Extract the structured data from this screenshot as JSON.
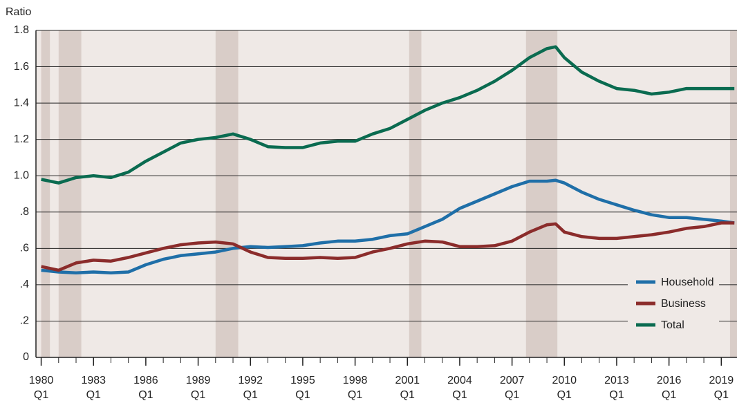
{
  "chart_data": {
    "type": "line",
    "y_axis_label": "Ratio",
    "x": [
      1980,
      1981,
      1982,
      1983,
      1984,
      1985,
      1986,
      1987,
      1988,
      1989,
      1990,
      1991,
      1992,
      1993,
      1994,
      1995,
      1996,
      1997,
      1998,
      1999,
      2000,
      2001,
      2002,
      2003,
      2004,
      2005,
      2006,
      2007,
      2008,
      2009,
      2009.5,
      2010,
      2011,
      2012,
      2013,
      2014,
      2015,
      2016,
      2017,
      2018,
      2019,
      2019.75
    ],
    "series": [
      {
        "name": "Household",
        "color": "#1f6fa8",
        "values": [
          0.48,
          0.47,
          0.465,
          0.47,
          0.465,
          0.47,
          0.51,
          0.54,
          0.56,
          0.57,
          0.58,
          0.6,
          0.61,
          0.605,
          0.61,
          0.615,
          0.63,
          0.64,
          0.64,
          0.65,
          0.67,
          0.68,
          0.72,
          0.76,
          0.82,
          0.86,
          0.9,
          0.94,
          0.97,
          0.97,
          0.975,
          0.96,
          0.91,
          0.87,
          0.84,
          0.81,
          0.785,
          0.77,
          0.77,
          0.76,
          0.75,
          0.74
        ]
      },
      {
        "name": "Business",
        "color": "#8b2c2b",
        "values": [
          0.5,
          0.48,
          0.52,
          0.535,
          0.53,
          0.55,
          0.575,
          0.6,
          0.62,
          0.63,
          0.635,
          0.625,
          0.58,
          0.55,
          0.545,
          0.545,
          0.55,
          0.545,
          0.55,
          0.58,
          0.6,
          0.625,
          0.64,
          0.635,
          0.61,
          0.61,
          0.615,
          0.64,
          0.69,
          0.73,
          0.735,
          0.69,
          0.665,
          0.655,
          0.655,
          0.665,
          0.675,
          0.69,
          0.71,
          0.72,
          0.74,
          0.74
        ]
      },
      {
        "name": "Total",
        "color": "#0a6b50",
        "values": [
          0.98,
          0.96,
          0.99,
          1.0,
          0.99,
          1.02,
          1.08,
          1.13,
          1.18,
          1.2,
          1.21,
          1.23,
          1.2,
          1.16,
          1.155,
          1.155,
          1.18,
          1.19,
          1.19,
          1.23,
          1.26,
          1.31,
          1.36,
          1.4,
          1.43,
          1.47,
          1.52,
          1.58,
          1.65,
          1.7,
          1.71,
          1.65,
          1.57,
          1.52,
          1.48,
          1.47,
          1.45,
          1.46,
          1.48,
          1.48,
          1.48,
          1.48
        ]
      }
    ],
    "shaded_periods": [
      [
        1980.0,
        1980.5
      ],
      [
        1981.0,
        1982.3
      ],
      [
        1990.0,
        1991.3
      ],
      [
        2001.1,
        2001.8
      ],
      [
        2007.8,
        2009.6
      ],
      [
        2019.5,
        2019.9
      ]
    ],
    "shade_color": "#d9cdc8",
    "background": "#efe9e6",
    "xlim": [
      1979.7,
      2019.9
    ],
    "xticks": [
      {
        "value": 1980,
        "label": "1980",
        "quarter": "Q1"
      },
      {
        "value": 1983,
        "label": "1983",
        "quarter": "Q1"
      },
      {
        "value": 1986,
        "label": "1986",
        "quarter": "Q1"
      },
      {
        "value": 1989,
        "label": "1989",
        "quarter": "Q1"
      },
      {
        "value": 1992,
        "label": "1992",
        "quarter": "Q1"
      },
      {
        "value": 1995,
        "label": "1995",
        "quarter": "Q1"
      },
      {
        "value": 1998,
        "label": "1998",
        "quarter": "Q1"
      },
      {
        "value": 2001,
        "label": "2001",
        "quarter": "Q1"
      },
      {
        "value": 2004,
        "label": "2004",
        "quarter": "Q1"
      },
      {
        "value": 2007,
        "label": "2007",
        "quarter": "Q1"
      },
      {
        "value": 2010,
        "label": "2010",
        "quarter": "Q1"
      },
      {
        "value": 2013,
        "label": "2013",
        "quarter": "Q1"
      },
      {
        "value": 2016,
        "label": "2016",
        "quarter": "Q1"
      },
      {
        "value": 2019,
        "label": "2019",
        "quarter": "Q1"
      }
    ],
    "xminor_ticks": [
      1980,
      1981,
      1982,
      1983,
      1984,
      1985,
      1986,
      1987,
      1988,
      1989,
      1990,
      1991,
      1992,
      1993,
      1994,
      1995,
      1996,
      1997,
      1998,
      1999,
      2000,
      2001,
      2002,
      2003,
      2004,
      2005,
      2006,
      2007,
      2008,
      2009,
      2010,
      2011,
      2012,
      2013,
      2014,
      2015,
      2016,
      2017,
      2018,
      2019
    ],
    "ylim": [
      0,
      1.8
    ],
    "yticks": [
      0,
      {
        "value": 0.2,
        "label": ".2"
      },
      {
        "value": 0.4,
        "label": ".4"
      },
      {
        "value": 0.6,
        "label": ".6"
      },
      {
        "value": 0.8,
        "label": ".8"
      },
      {
        "value": 1.0,
        "label": "1.0"
      },
      1.2,
      1.4,
      1.6,
      1.8
    ],
    "grid": true,
    "legend": "lower right"
  }
}
